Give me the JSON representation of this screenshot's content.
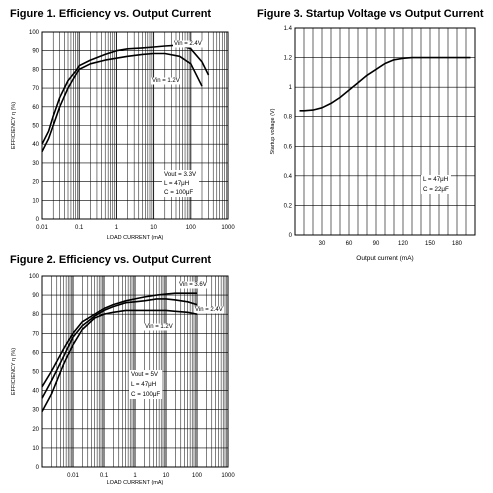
{
  "chart_data": [
    {
      "type": "line",
      "title": "Figure 1. Efficiency vs. Output Current",
      "xlabel": "LOAD CURRENT (mA)",
      "ylabel": "EFFICIENCY η (%)",
      "xscale": "log",
      "xlim": [
        0.01,
        1000
      ],
      "ylim": [
        0,
        100
      ],
      "xticks": [
        "0.01",
        "0.1",
        "1",
        "10",
        "100",
        "1000"
      ],
      "yticks": [
        "0",
        "10",
        "20",
        "30",
        "40",
        "50",
        "60",
        "70",
        "80",
        "90",
        "100"
      ],
      "grid": true,
      "series": [
        {
          "name": "Vin = 2.4V",
          "color": "#000000",
          "x": [
            0.01,
            0.015,
            0.02,
            0.03,
            0.05,
            0.08,
            0.1,
            0.2,
            0.5,
            1,
            2,
            5,
            10,
            20,
            50,
            100,
            200,
            300
          ],
          "y": [
            40,
            47,
            55,
            65,
            74,
            79,
            82,
            85,
            88,
            90,
            91,
            91.5,
            92,
            92.5,
            93,
            91,
            84,
            77
          ]
        },
        {
          "name": "Vin = 1.2V",
          "color": "#000000",
          "x": [
            0.01,
            0.015,
            0.02,
            0.03,
            0.05,
            0.08,
            0.1,
            0.2,
            0.5,
            1,
            2,
            5,
            10,
            20,
            50,
            100,
            200
          ],
          "y": [
            36,
            43,
            50,
            60,
            70,
            77,
            80,
            83,
            85,
            86,
            87,
            88,
            88.5,
            88.5,
            87,
            83,
            71
          ]
        }
      ],
      "annotations": [
        "Vout = 3.3V",
        "L = 47μH",
        "C = 100μF"
      ]
    },
    {
      "type": "line",
      "title": "Figure 2. Efficiency vs. Output Current",
      "xlabel": "LOAD CURRENT (mA)",
      "ylabel": "EFFICIENCY η (%)",
      "xscale": "log",
      "xlim": [
        0.001,
        1000
      ],
      "ylim": [
        0,
        100
      ],
      "xticks": [
        "0.01",
        "0.1",
        "1",
        "10",
        "100",
        "1000"
      ],
      "yticks": [
        "0",
        "10",
        "20",
        "30",
        "40",
        "50",
        "60",
        "70",
        "80",
        "90",
        "100"
      ],
      "grid": true,
      "series": [
        {
          "name": "Vin = 3.6V",
          "color": "#000000",
          "x": [
            0.001,
            0.002,
            0.005,
            0.01,
            0.02,
            0.05,
            0.1,
            0.2,
            0.5,
            1,
            2,
            5,
            10,
            20,
            50,
            100
          ],
          "y": [
            42,
            50,
            62,
            70,
            76,
            80,
            83,
            85,
            87,
            88,
            89,
            90,
            90.5,
            91,
            91,
            91
          ]
        },
        {
          "name": "Vin = 2.4V",
          "color": "#000000",
          "x": [
            0.001,
            0.002,
            0.005,
            0.01,
            0.02,
            0.05,
            0.1,
            0.2,
            0.5,
            1,
            2,
            5,
            10,
            20,
            50,
            100
          ],
          "y": [
            36,
            45,
            58,
            68,
            74,
            79,
            82,
            84,
            86,
            86.5,
            87,
            88,
            88,
            87.5,
            86.5,
            85
          ]
        },
        {
          "name": "Vin = 1.2V",
          "color": "#000000",
          "x": [
            0.001,
            0.002,
            0.005,
            0.01,
            0.02,
            0.05,
            0.1,
            0.2,
            0.5,
            1,
            2,
            5,
            10,
            20,
            50,
            100
          ],
          "y": [
            29,
            38,
            54,
            64,
            72,
            78,
            80,
            81,
            82,
            82,
            82,
            82,
            82,
            81.5,
            81,
            80
          ]
        }
      ],
      "annotations": [
        "Vout = 5V",
        "L = 47μH",
        "C = 100μF"
      ]
    },
    {
      "type": "line",
      "title": "Figure 3. Startup Voltage vs Output Current",
      "xlabel": "Output current (mA)",
      "ylabel": "Startup voltage (V)",
      "xlim": [
        0,
        200
      ],
      "ylim": [
        0,
        1.4
      ],
      "xticks": [
        "30",
        "60",
        "90",
        "120",
        "150",
        "180"
      ],
      "yticks": [
        "0",
        "0.2",
        "0.4",
        "0.6",
        "0.8",
        "1",
        "1.2",
        "1.4"
      ],
      "grid": true,
      "series": [
        {
          "color": "#000000",
          "x": [
            5,
            10,
            20,
            30,
            40,
            50,
            60,
            70,
            80,
            90,
            100,
            110,
            120,
            130,
            140,
            150,
            160,
            170,
            180,
            190,
            195
          ],
          "y": [
            0.84,
            0.84,
            0.845,
            0.86,
            0.89,
            0.93,
            0.98,
            1.03,
            1.08,
            1.12,
            1.16,
            1.185,
            1.195,
            1.2,
            1.2,
            1.2,
            1.2,
            1.2,
            1.2,
            1.2,
            1.2
          ]
        }
      ],
      "annotations": [
        "L = 47μH",
        "C = 22μF"
      ]
    }
  ]
}
